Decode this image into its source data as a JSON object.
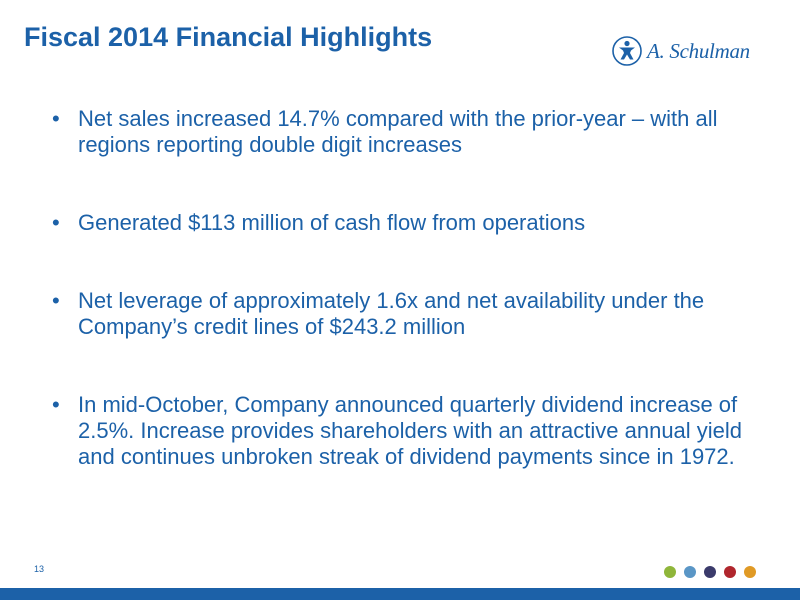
{
  "slide": {
    "title": "Fiscal 2014 Financial Highlights",
    "logo_text": "A. Schulman",
    "page_number": "13"
  },
  "bullets": [
    "Net sales increased 14.7% compared with the prior-year – with all regions reporting double digit increases",
    "Generated $113 million of cash flow from operations",
    "Net leverage of approximately 1.6x and net availability under the Company’s credit lines of $243.2 million",
    "In mid-October, Company announced quarterly dividend increase of 2.5%.  Increase provides shareholders with an attractive annual yield and continues unbroken streak of dividend payments since in 1972."
  ],
  "colors": {
    "brand_blue": "#1c61a8",
    "dot_colors": [
      "#8fb63a",
      "#5a96c6",
      "#3b3b6b",
      "#b0262d",
      "#e09a25"
    ]
  },
  "icons": {
    "logo_mark": "figure-emblem-icon",
    "footer_dots": "decorative-dots"
  }
}
